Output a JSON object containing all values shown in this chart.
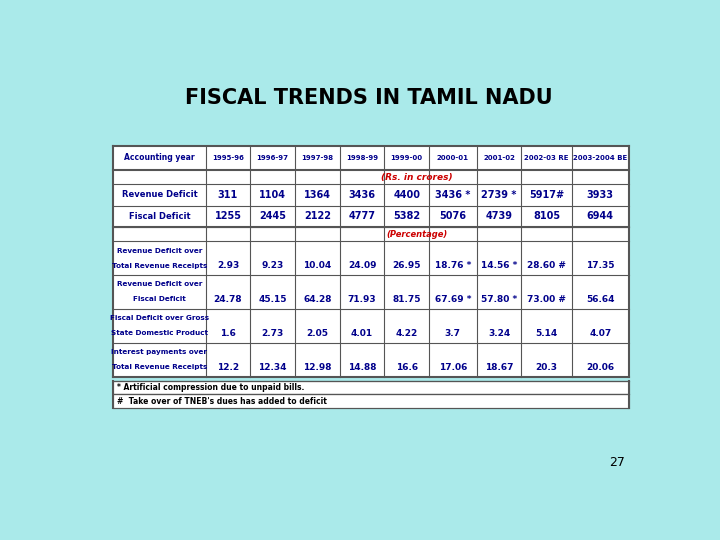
{
  "title": "FISCAL TRENDS IN TAMIL NADU",
  "bg_color": "#aaeaea",
  "header_color": "#00008B",
  "value_color": "#00008B",
  "red_color": "#cc0000",
  "black_color": "#000000",
  "footnote1": "* Artificial compression due to unpaid bills.",
  "footnote2": "#  Take over of TNEB's dues has added to deficit",
  "page_num": "27",
  "col_headers": [
    "Accounting year",
    "1995-96",
    "1996-97",
    "1997-98",
    "1998-99",
    "1999-00",
    "2000-01",
    "2001-02",
    "2002-03 RE",
    "2003-2004 BE"
  ],
  "subheader_rs": "(Rs. in crores)",
  "subheader_pct": "(Percentage)",
  "rows": [
    {
      "label": "Revenue Deficit",
      "label2": null,
      "values": [
        "311",
        "1104",
        "1364",
        "3436",
        "4400",
        "3436 *",
        "2739 *",
        "5917#",
        "3933"
      ]
    },
    {
      "label": "Fiscal Deficit",
      "label2": null,
      "values": [
        "1255",
        "2445",
        "2122",
        "4777",
        "5382",
        "5076",
        "4739",
        "8105",
        "6944"
      ]
    },
    {
      "label": "Revenue Deficit over",
      "label2": "Total Revenue Receipts",
      "values": [
        "2.93",
        "9.23",
        "10.04",
        "24.09",
        "26.95",
        "18.76 *",
        "14.56 *",
        "28.60 #",
        "17.35"
      ]
    },
    {
      "label": "Revenue Deficit over",
      "label2": "Fiscal Deficit",
      "values": [
        "24.78",
        "45.15",
        "64.28",
        "71.93",
        "81.75",
        "67.69 *",
        "57.80 *",
        "73.00 #",
        "56.64"
      ]
    },
    {
      "label": "Fiscal Deficit over Gross",
      "label2": "State Domestic Product",
      "values": [
        "1.6",
        "2.73",
        "2.05",
        "4.01",
        "4.22",
        "3.7",
        "3.24",
        "5.14",
        "4.07"
      ]
    },
    {
      "label": "Interest payments over",
      "label2": "Total Revenue Receipts",
      "values": [
        "12.2",
        "12.34",
        "12.98",
        "14.88",
        "16.6",
        "17.06",
        "18.67",
        "20.3",
        "20.06"
      ]
    }
  ]
}
